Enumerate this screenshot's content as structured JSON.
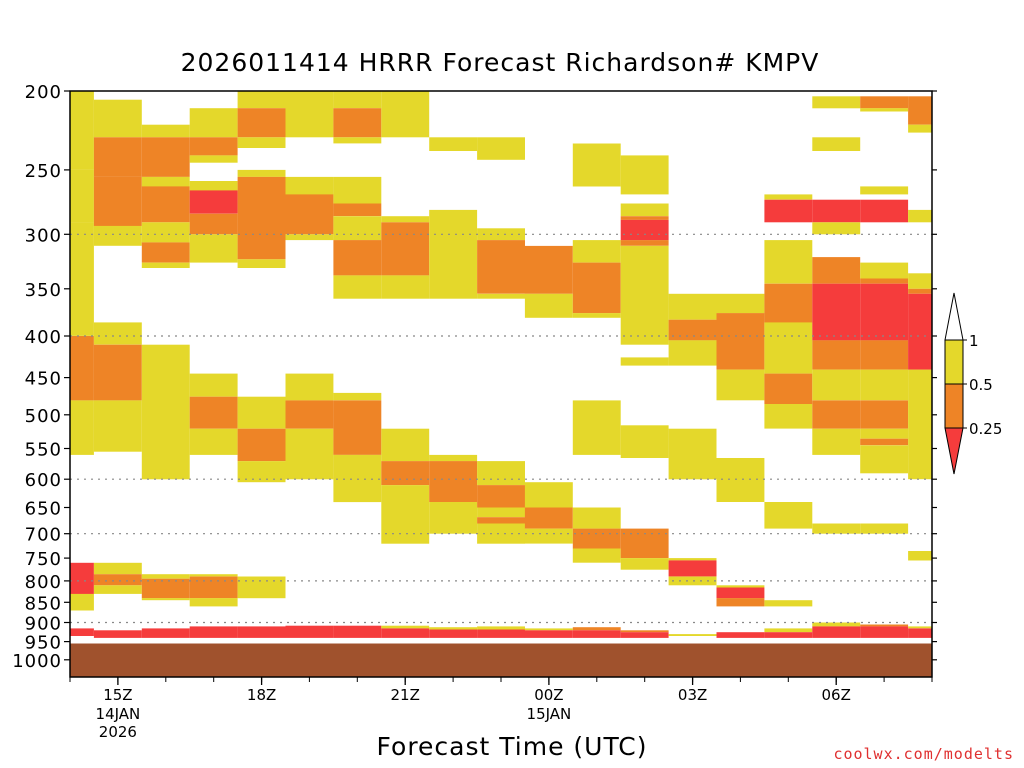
{
  "chart_data": {
    "type": "heatmap",
    "title": "2026011414 HRRR Forecast Richardson# KMPV",
    "xlabel": "Forecast Time (UTC)",
    "ylabel": "",
    "y_scale": "log-pressure",
    "ylim": [
      1050,
      200
    ],
    "y_ticks": [
      200,
      250,
      300,
      350,
      400,
      450,
      500,
      550,
      600,
      650,
      700,
      750,
      800,
      850,
      900,
      950,
      1000
    ],
    "gridlines_dotted": [
      300,
      400,
      600,
      700,
      800,
      900
    ],
    "x_ticks": [
      {
        "hour": 1,
        "label": "15Z",
        "sub": [
          "14JAN",
          "2026"
        ]
      },
      {
        "hour": 4,
        "label": "18Z",
        "sub": []
      },
      {
        "hour": 7,
        "label": "21Z",
        "sub": []
      },
      {
        "hour": 10,
        "label": "00Z",
        "sub": [
          "15JAN"
        ]
      },
      {
        "hour": 13,
        "label": "03Z",
        "sub": []
      },
      {
        "hour": 16,
        "label": "06Z",
        "sub": []
      }
    ],
    "x_range": [
      0,
      18
    ],
    "colorbar": {
      "labels": [
        "1",
        "0.5",
        "0.25"
      ]
    },
    "palette": {
      "yellow": "#e4d82b",
      "orange": "#ee8426",
      "red": "#f53c3c",
      "ground": "#a0522d"
    },
    "ground_top_hpa": 955,
    "cells": [
      [
        0,
        0.5,
        200,
        250,
        "yellow"
      ],
      [
        0,
        0.5,
        250,
        290,
        "yellow"
      ],
      [
        0,
        0.5,
        290,
        400,
        "yellow"
      ],
      [
        0,
        0.5,
        400,
        480,
        "orange"
      ],
      [
        0,
        0.5,
        480,
        560,
        "yellow"
      ],
      [
        0,
        0.5,
        760,
        790,
        "red"
      ],
      [
        0,
        0.5,
        790,
        830,
        "red"
      ],
      [
        0,
        0.5,
        830,
        870,
        "yellow"
      ],
      [
        0,
        0.5,
        915,
        935,
        "red"
      ],
      [
        0.5,
        1.5,
        205,
        228,
        "yellow"
      ],
      [
        0.5,
        1.5,
        228,
        255,
        "orange"
      ],
      [
        0.5,
        1.5,
        255,
        293,
        "orange"
      ],
      [
        0.5,
        1.5,
        293,
        310,
        "yellow"
      ],
      [
        0.5,
        1.5,
        385,
        410,
        "yellow"
      ],
      [
        0.5,
        1.5,
        410,
        480,
        "orange"
      ],
      [
        0.5,
        1.5,
        480,
        555,
        "yellow"
      ],
      [
        0.5,
        1.5,
        760,
        785,
        "yellow"
      ],
      [
        0.5,
        1.5,
        785,
        810,
        "orange"
      ],
      [
        0.5,
        1.5,
        810,
        830,
        "yellow"
      ],
      [
        0.5,
        1.5,
        920,
        940,
        "red"
      ],
      [
        1.5,
        2.5,
        220,
        228,
        "yellow"
      ],
      [
        1.5,
        2.5,
        228,
        255,
        "orange"
      ],
      [
        1.5,
        2.5,
        255,
        262,
        "yellow"
      ],
      [
        1.5,
        2.5,
        262,
        290,
        "orange"
      ],
      [
        1.5,
        2.5,
        290,
        307,
        "yellow"
      ],
      [
        1.5,
        2.5,
        307,
        325,
        "orange"
      ],
      [
        1.5,
        2.5,
        325,
        330,
        "yellow"
      ],
      [
        1.5,
        2.5,
        410,
        600,
        "yellow"
      ],
      [
        1.5,
        2.5,
        785,
        795,
        "yellow"
      ],
      [
        1.5,
        2.5,
        795,
        840,
        "orange"
      ],
      [
        1.5,
        2.5,
        840,
        845,
        "yellow"
      ],
      [
        1.5,
        2.5,
        915,
        940,
        "red"
      ],
      [
        2.5,
        3.5,
        210,
        228,
        "yellow"
      ],
      [
        2.5,
        3.5,
        228,
        240,
        "orange"
      ],
      [
        2.5,
        3.5,
        240,
        245,
        "yellow"
      ],
      [
        2.5,
        3.5,
        258,
        265,
        "yellow"
      ],
      [
        2.5,
        3.5,
        265,
        283,
        "red"
      ],
      [
        2.5,
        3.5,
        283,
        300,
        "orange"
      ],
      [
        2.5,
        3.5,
        300,
        325,
        "yellow"
      ],
      [
        2.5,
        3.5,
        445,
        475,
        "yellow"
      ],
      [
        2.5,
        3.5,
        475,
        520,
        "orange"
      ],
      [
        2.5,
        3.5,
        520,
        560,
        "yellow"
      ],
      [
        2.5,
        3.5,
        785,
        790,
        "yellow"
      ],
      [
        2.5,
        3.5,
        790,
        840,
        "orange"
      ],
      [
        2.5,
        3.5,
        840,
        860,
        "yellow"
      ],
      [
        2.5,
        3.5,
        910,
        940,
        "red"
      ],
      [
        3.5,
        4.5,
        200,
        210,
        "yellow"
      ],
      [
        3.5,
        4.5,
        210,
        228,
        "orange"
      ],
      [
        3.5,
        4.5,
        228,
        235,
        "yellow"
      ],
      [
        3.5,
        4.5,
        250,
        255,
        "yellow"
      ],
      [
        3.5,
        4.5,
        255,
        322,
        "orange"
      ],
      [
        3.5,
        4.5,
        322,
        330,
        "yellow"
      ],
      [
        3.5,
        4.5,
        475,
        520,
        "yellow"
      ],
      [
        3.5,
        4.5,
        520,
        570,
        "orange"
      ],
      [
        3.5,
        4.5,
        570,
        605,
        "yellow"
      ],
      [
        3.5,
        4.5,
        790,
        840,
        "yellow"
      ],
      [
        3.5,
        4.5,
        910,
        940,
        "red"
      ],
      [
        4.5,
        5.5,
        200,
        228,
        "yellow"
      ],
      [
        4.5,
        5.5,
        255,
        268,
        "yellow"
      ],
      [
        4.5,
        5.5,
        268,
        300,
        "orange"
      ],
      [
        4.5,
        5.5,
        300,
        305,
        "yellow"
      ],
      [
        4.5,
        5.5,
        445,
        480,
        "yellow"
      ],
      [
        4.5,
        5.5,
        480,
        520,
        "orange"
      ],
      [
        4.5,
        5.5,
        520,
        600,
        "yellow"
      ],
      [
        4.5,
        5.5,
        908,
        940,
        "red"
      ],
      [
        5.5,
        6.5,
        200,
        210,
        "yellow"
      ],
      [
        5.5,
        6.5,
        210,
        228,
        "orange"
      ],
      [
        5.5,
        6.5,
        228,
        232,
        "yellow"
      ],
      [
        5.5,
        6.5,
        255,
        275,
        "yellow"
      ],
      [
        5.5,
        6.5,
        275,
        285,
        "orange"
      ],
      [
        5.5,
        6.5,
        285,
        305,
        "yellow"
      ],
      [
        5.5,
        6.5,
        305,
        337,
        "orange"
      ],
      [
        5.5,
        6.5,
        337,
        360,
        "yellow"
      ],
      [
        5.5,
        6.5,
        470,
        480,
        "yellow"
      ],
      [
        5.5,
        6.5,
        480,
        560,
        "orange"
      ],
      [
        5.5,
        6.5,
        560,
        640,
        "yellow"
      ],
      [
        5.5,
        6.5,
        908,
        940,
        "red"
      ],
      [
        6.5,
        7.5,
        200,
        228,
        "yellow"
      ],
      [
        6.5,
        7.5,
        285,
        290,
        "yellow"
      ],
      [
        6.5,
        7.5,
        290,
        337,
        "orange"
      ],
      [
        6.5,
        7.5,
        337,
        360,
        "yellow"
      ],
      [
        6.5,
        7.5,
        520,
        570,
        "yellow"
      ],
      [
        6.5,
        7.5,
        570,
        610,
        "orange"
      ],
      [
        6.5,
        7.5,
        610,
        720,
        "yellow"
      ],
      [
        6.5,
        7.5,
        908,
        915,
        "yellow"
      ],
      [
        6.5,
        7.5,
        915,
        940,
        "red"
      ],
      [
        7.5,
        8.5,
        228,
        237,
        "yellow"
      ],
      [
        7.5,
        8.5,
        280,
        360,
        "yellow"
      ],
      [
        7.5,
        8.5,
        560,
        570,
        "yellow"
      ],
      [
        7.5,
        8.5,
        570,
        640,
        "orange"
      ],
      [
        7.5,
        8.5,
        640,
        700,
        "yellow"
      ],
      [
        7.5,
        8.5,
        912,
        918,
        "yellow"
      ],
      [
        7.5,
        8.5,
        918,
        940,
        "red"
      ],
      [
        8.5,
        9.5,
        228,
        243,
        "yellow"
      ],
      [
        8.5,
        9.5,
        295,
        305,
        "yellow"
      ],
      [
        8.5,
        9.5,
        305,
        355,
        "orange"
      ],
      [
        8.5,
        9.5,
        355,
        360,
        "yellow"
      ],
      [
        8.5,
        9.5,
        570,
        610,
        "yellow"
      ],
      [
        8.5,
        9.5,
        610,
        650,
        "orange"
      ],
      [
        8.5,
        9.5,
        650,
        668,
        "yellow"
      ],
      [
        8.5,
        9.5,
        668,
        680,
        "orange"
      ],
      [
        8.5,
        9.5,
        680,
        720,
        "yellow"
      ],
      [
        8.5,
        9.5,
        910,
        918,
        "yellow"
      ],
      [
        8.5,
        9.5,
        918,
        940,
        "red"
      ],
      [
        9.5,
        10.5,
        310,
        355,
        "orange"
      ],
      [
        9.5,
        10.5,
        355,
        380,
        "yellow"
      ],
      [
        9.5,
        10.5,
        605,
        650,
        "yellow"
      ],
      [
        9.5,
        10.5,
        650,
        690,
        "orange"
      ],
      [
        9.5,
        10.5,
        690,
        720,
        "yellow"
      ],
      [
        9.5,
        10.5,
        915,
        920,
        "yellow"
      ],
      [
        9.5,
        10.5,
        920,
        940,
        "red"
      ],
      [
        10.5,
        11.5,
        232,
        262,
        "yellow"
      ],
      [
        10.5,
        11.5,
        305,
        325,
        "yellow"
      ],
      [
        10.5,
        11.5,
        325,
        375,
        "orange"
      ],
      [
        10.5,
        11.5,
        375,
        380,
        "yellow"
      ],
      [
        10.5,
        11.5,
        480,
        560,
        "yellow"
      ],
      [
        10.5,
        11.5,
        650,
        690,
        "yellow"
      ],
      [
        10.5,
        11.5,
        690,
        730,
        "orange"
      ],
      [
        10.5,
        11.5,
        730,
        760,
        "yellow"
      ],
      [
        10.5,
        11.5,
        912,
        920,
        "orange"
      ],
      [
        10.5,
        11.5,
        920,
        940,
        "red"
      ],
      [
        11.5,
        12.5,
        240,
        268,
        "yellow"
      ],
      [
        11.5,
        12.5,
        275,
        285,
        "yellow"
      ],
      [
        11.5,
        12.5,
        285,
        288,
        "orange"
      ],
      [
        11.5,
        12.5,
        288,
        305,
        "red"
      ],
      [
        11.5,
        12.5,
        305,
        310,
        "orange"
      ],
      [
        11.5,
        12.5,
        310,
        410,
        "yellow"
      ],
      [
        11.5,
        12.5,
        425,
        435,
        "yellow"
      ],
      [
        11.5,
        12.5,
        515,
        565,
        "yellow"
      ],
      [
        11.5,
        12.5,
        690,
        750,
        "orange"
      ],
      [
        11.5,
        12.5,
        750,
        775,
        "yellow"
      ],
      [
        11.5,
        12.5,
        920,
        925,
        "orange"
      ],
      [
        11.5,
        12.5,
        925,
        940,
        "red"
      ],
      [
        12.5,
        13.5,
        355,
        382,
        "yellow"
      ],
      [
        12.5,
        13.5,
        382,
        405,
        "orange"
      ],
      [
        12.5,
        13.5,
        405,
        435,
        "yellow"
      ],
      [
        12.5,
        13.5,
        520,
        600,
        "yellow"
      ],
      [
        12.5,
        13.5,
        750,
        755,
        "yellow"
      ],
      [
        12.5,
        13.5,
        755,
        790,
        "red"
      ],
      [
        12.5,
        13.5,
        790,
        810,
        "yellow"
      ],
      [
        12.5,
        13.5,
        930,
        935,
        "yellow"
      ],
      [
        13.5,
        14.5,
        355,
        375,
        "yellow"
      ],
      [
        13.5,
        14.5,
        375,
        440,
        "orange"
      ],
      [
        13.5,
        14.5,
        440,
        480,
        "yellow"
      ],
      [
        13.5,
        14.5,
        565,
        640,
        "yellow"
      ],
      [
        13.5,
        14.5,
        810,
        815,
        "yellow"
      ],
      [
        13.5,
        14.5,
        815,
        840,
        "red"
      ],
      [
        13.5,
        14.5,
        840,
        860,
        "orange"
      ],
      [
        13.5,
        14.5,
        925,
        940,
        "red"
      ],
      [
        14.5,
        15.5,
        268,
        272,
        "yellow"
      ],
      [
        14.5,
        15.5,
        272,
        290,
        "red"
      ],
      [
        14.5,
        15.5,
        305,
        345,
        "yellow"
      ],
      [
        14.5,
        15.5,
        345,
        385,
        "orange"
      ],
      [
        14.5,
        15.5,
        385,
        445,
        "yellow"
      ],
      [
        14.5,
        15.5,
        445,
        485,
        "orange"
      ],
      [
        14.5,
        15.5,
        485,
        520,
        "yellow"
      ],
      [
        14.5,
        15.5,
        640,
        690,
        "yellow"
      ],
      [
        14.5,
        15.5,
        845,
        860,
        "yellow"
      ],
      [
        14.5,
        15.5,
        915,
        925,
        "yellow"
      ],
      [
        14.5,
        15.5,
        925,
        940,
        "red"
      ],
      [
        15.5,
        16.5,
        203,
        210,
        "yellow"
      ],
      [
        15.5,
        16.5,
        228,
        237,
        "yellow"
      ],
      [
        15.5,
        16.5,
        272,
        290,
        "red"
      ],
      [
        15.5,
        16.5,
        290,
        300,
        "yellow"
      ],
      [
        15.5,
        16.5,
        320,
        345,
        "orange"
      ],
      [
        15.5,
        16.5,
        345,
        405,
        "red"
      ],
      [
        15.5,
        16.5,
        405,
        440,
        "orange"
      ],
      [
        15.5,
        16.5,
        440,
        480,
        "yellow"
      ],
      [
        15.5,
        16.5,
        480,
        520,
        "orange"
      ],
      [
        15.5,
        16.5,
        520,
        560,
        "yellow"
      ],
      [
        15.5,
        16.5,
        680,
        700,
        "yellow"
      ],
      [
        15.5,
        16.5,
        900,
        910,
        "yellow"
      ],
      [
        15.5,
        16.5,
        910,
        940,
        "red"
      ],
      [
        16.5,
        17.5,
        203,
        210,
        "orange"
      ],
      [
        16.5,
        17.5,
        210,
        212,
        "yellow"
      ],
      [
        16.5,
        17.5,
        262,
        268,
        "yellow"
      ],
      [
        16.5,
        17.5,
        272,
        290,
        "red"
      ],
      [
        16.5,
        17.5,
        325,
        340,
        "yellow"
      ],
      [
        16.5,
        17.5,
        340,
        345,
        "orange"
      ],
      [
        16.5,
        17.5,
        345,
        405,
        "red"
      ],
      [
        16.5,
        17.5,
        405,
        440,
        "orange"
      ],
      [
        16.5,
        17.5,
        440,
        480,
        "yellow"
      ],
      [
        16.5,
        17.5,
        480,
        520,
        "orange"
      ],
      [
        16.5,
        17.5,
        520,
        535,
        "yellow"
      ],
      [
        16.5,
        17.5,
        535,
        545,
        "orange"
      ],
      [
        16.5,
        17.5,
        545,
        590,
        "yellow"
      ],
      [
        16.5,
        17.5,
        680,
        700,
        "yellow"
      ],
      [
        16.5,
        17.5,
        905,
        910,
        "orange"
      ],
      [
        16.5,
        17.5,
        910,
        940,
        "red"
      ],
      [
        17.5,
        18,
        203,
        220,
        "orange"
      ],
      [
        17.5,
        18,
        220,
        225,
        "yellow"
      ],
      [
        17.5,
        18,
        280,
        290,
        "yellow"
      ],
      [
        17.5,
        18,
        335,
        350,
        "yellow"
      ],
      [
        17.5,
        18,
        350,
        355,
        "orange"
      ],
      [
        17.5,
        18,
        355,
        440,
        "red"
      ],
      [
        17.5,
        18,
        440,
        600,
        "yellow"
      ],
      [
        17.5,
        18,
        735,
        755,
        "yellow"
      ],
      [
        17.5,
        18,
        910,
        915,
        "yellow"
      ],
      [
        17.5,
        18,
        915,
        940,
        "red"
      ]
    ]
  },
  "watermark": "coolwx.com/modelts"
}
